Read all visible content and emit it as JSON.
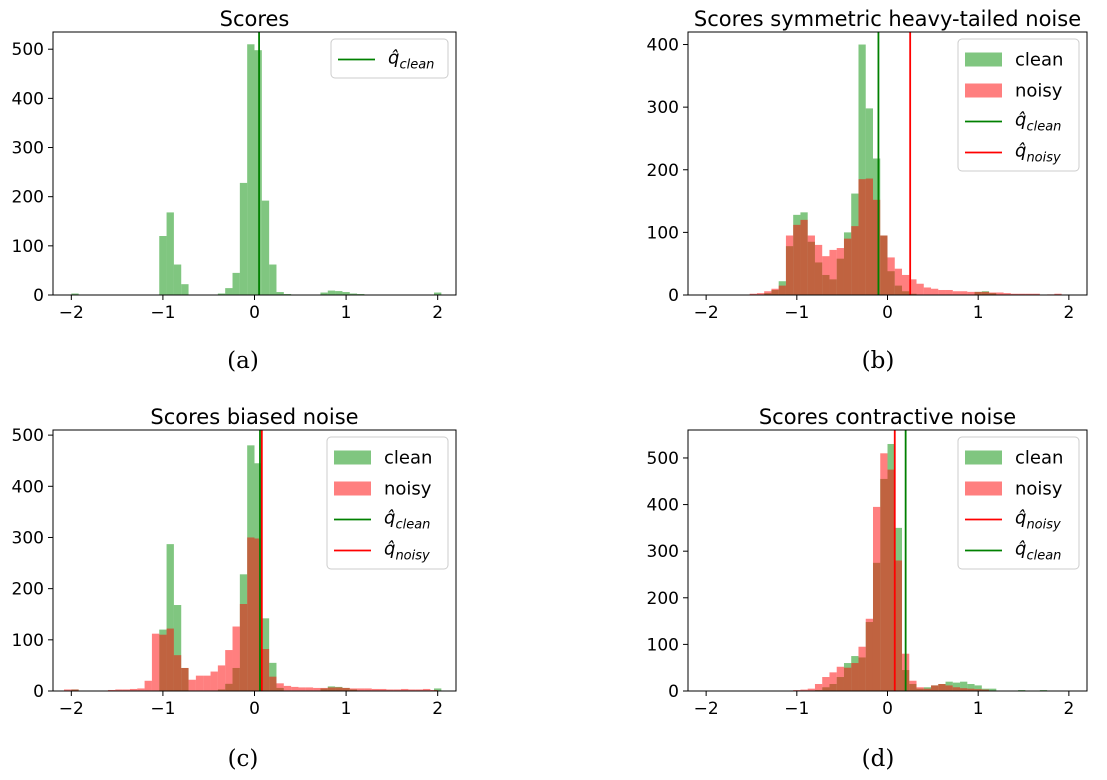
{
  "chart_data": [
    {
      "type": "histogram",
      "title": "Scores",
      "caption": "(a)",
      "xlim": [
        -2.2,
        2.2
      ],
      "ylim": [
        0,
        535
      ],
      "xticks": [
        -2,
        -1,
        0,
        1,
        2
      ],
      "yticks": [
        0,
        100,
        200,
        300,
        400,
        500
      ],
      "legend": "top-right",
      "bin_width": 0.08,
      "series": [
        {
          "name": "clean",
          "show_in_legend": false,
          "color": "#2ca02c",
          "opacity": 0.6,
          "bars": [
            [
              -2,
              3
            ],
            [
              -1.04,
              120
            ],
            [
              -0.96,
              168
            ],
            [
              -0.88,
              62
            ],
            [
              -0.8,
              22
            ],
            [
              -0.4,
              3
            ],
            [
              -0.32,
              14
            ],
            [
              -0.24,
              45
            ],
            [
              -0.16,
              228
            ],
            [
              -0.08,
              510
            ],
            [
              0,
              498
            ],
            [
              0.08,
              192
            ],
            [
              0.16,
              62
            ],
            [
              0.24,
              6
            ],
            [
              0.32,
              2
            ],
            [
              0.72,
              5
            ],
            [
              0.8,
              9
            ],
            [
              0.88,
              8
            ],
            [
              0.96,
              6
            ],
            [
              1.04,
              3
            ],
            [
              1.12,
              2
            ],
            [
              1.96,
              5
            ]
          ]
        }
      ],
      "vlines": [
        {
          "x": 0.05,
          "color": "#008000",
          "label": "q̂",
          "sub": "clean"
        }
      ]
    },
    {
      "type": "histogram",
      "title": "Scores symmetric heavy-tailed noise",
      "caption": "(b)",
      "xlim": [
        -2.2,
        2.2
      ],
      "ylim": [
        0,
        420
      ],
      "xticks": [
        -2,
        -1,
        0,
        1,
        2
      ],
      "yticks": [
        0,
        100,
        200,
        300,
        400
      ],
      "legend": "top-right",
      "bin_width": 0.08,
      "series": [
        {
          "name": "clean",
          "color": "#2ca02c",
          "opacity": 0.6,
          "bars": [
            [
              -1.36,
              3
            ],
            [
              -1.28,
              8
            ],
            [
              -1.2,
              22
            ],
            [
              -1.12,
              78
            ],
            [
              -1.04,
              128
            ],
            [
              -0.96,
              132
            ],
            [
              -0.88,
              85
            ],
            [
              -0.8,
              52
            ],
            [
              -0.72,
              32
            ],
            [
              -0.64,
              25
            ],
            [
              -0.56,
              58
            ],
            [
              -0.48,
              100
            ],
            [
              -0.4,
              162
            ],
            [
              -0.32,
              400
            ],
            [
              -0.24,
              298
            ],
            [
              -0.16,
              218
            ],
            [
              -0.08,
              95
            ],
            [
              0,
              38
            ],
            [
              0.08,
              15
            ],
            [
              0.16,
              6
            ],
            [
              0.24,
              2
            ],
            [
              0.96,
              5
            ],
            [
              1.04,
              6
            ],
            [
              1.12,
              3
            ]
          ]
        },
        {
          "name": "noisy",
          "color": "#ff0000",
          "opacity": 0.5,
          "bars": [
            [
              -1.52,
              2
            ],
            [
              -1.44,
              3
            ],
            [
              -1.36,
              6
            ],
            [
              -1.28,
              10
            ],
            [
              -1.2,
              15
            ],
            [
              -1.12,
              95
            ],
            [
              -1.04,
              112
            ],
            [
              -0.96,
              120
            ],
            [
              -0.88,
              95
            ],
            [
              -0.8,
              80
            ],
            [
              -0.72,
              62
            ],
            [
              -0.64,
              72
            ],
            [
              -0.56,
              75
            ],
            [
              -0.48,
              90
            ],
            [
              -0.4,
              110
            ],
            [
              -0.32,
              185
            ],
            [
              -0.24,
              186
            ],
            [
              -0.16,
              152
            ],
            [
              -0.08,
              95
            ],
            [
              0,
              60
            ],
            [
              0.08,
              42
            ],
            [
              0.16,
              32
            ],
            [
              0.24,
              25
            ],
            [
              0.32,
              18
            ],
            [
              0.4,
              12
            ],
            [
              0.48,
              10
            ],
            [
              0.56,
              8
            ],
            [
              0.64,
              8
            ],
            [
              0.72,
              6
            ],
            [
              0.8,
              6
            ],
            [
              0.88,
              5
            ],
            [
              0.96,
              5
            ],
            [
              1.04,
              5
            ],
            [
              1.12,
              4
            ],
            [
              1.2,
              4
            ],
            [
              1.28,
              3
            ],
            [
              1.36,
              2
            ],
            [
              1.44,
              2
            ],
            [
              1.52,
              2
            ],
            [
              1.6,
              2
            ],
            [
              1.76,
              1
            ],
            [
              1.84,
              2
            ]
          ]
        }
      ],
      "vlines": [
        {
          "x": -0.1,
          "color": "#008000",
          "label": "q̂",
          "sub": "clean"
        },
        {
          "x": 0.25,
          "color": "#ff0000",
          "label": "q̂",
          "sub": "noisy"
        }
      ]
    },
    {
      "type": "histogram",
      "title": "Scores biased noise",
      "caption": "(c)",
      "xlim": [
        -2.2,
        2.2
      ],
      "ylim": [
        0,
        510
      ],
      "xticks": [
        -2,
        -1,
        0,
        1,
        2
      ],
      "yticks": [
        0,
        100,
        200,
        300,
        400,
        500
      ],
      "legend": "top-right",
      "bin_width": 0.08,
      "series": [
        {
          "name": "clean",
          "color": "#2ca02c",
          "opacity": 0.6,
          "bars": [
            [
              -2,
              3
            ],
            [
              -1.04,
              120
            ],
            [
              -0.96,
              287
            ],
            [
              -0.88,
              168
            ],
            [
              -0.8,
              45
            ],
            [
              -0.4,
              3
            ],
            [
              -0.32,
              14
            ],
            [
              -0.24,
              45
            ],
            [
              -0.16,
              228
            ],
            [
              -0.08,
              480
            ],
            [
              0,
              445
            ],
            [
              0.08,
              142
            ],
            [
              0.16,
              55
            ],
            [
              0.24,
              6
            ],
            [
              0.72,
              5
            ],
            [
              0.8,
              9
            ],
            [
              0.88,
              8
            ],
            [
              0.96,
              6
            ],
            [
              1.04,
              3
            ],
            [
              1.96,
              5
            ]
          ]
        },
        {
          "name": "noisy",
          "color": "#ff0000",
          "opacity": 0.5,
          "bars": [
            [
              -2.08,
              3
            ],
            [
              -2,
              3
            ],
            [
              -1.6,
              2
            ],
            [
              -1.52,
              3
            ],
            [
              -1.44,
              3
            ],
            [
              -1.36,
              4
            ],
            [
              -1.28,
              5
            ],
            [
              -1.2,
              20
            ],
            [
              -1.12,
              112
            ],
            [
              -1.04,
              110
            ],
            [
              -0.96,
              122
            ],
            [
              -0.88,
              70
            ],
            [
              -0.8,
              45
            ],
            [
              -0.72,
              22
            ],
            [
              -0.64,
              30
            ],
            [
              -0.56,
              30
            ],
            [
              -0.48,
              38
            ],
            [
              -0.4,
              50
            ],
            [
              -0.32,
              80
            ],
            [
              -0.24,
              126
            ],
            [
              -0.16,
              170
            ],
            [
              -0.08,
              300
            ],
            [
              0,
              298
            ],
            [
              0.08,
              82
            ],
            [
              0.16,
              28
            ],
            [
              0.24,
              15
            ],
            [
              0.32,
              10
            ],
            [
              0.4,
              8
            ],
            [
              0.48,
              7
            ],
            [
              0.56,
              7
            ],
            [
              0.64,
              6
            ],
            [
              0.72,
              6
            ],
            [
              0.8,
              7
            ],
            [
              0.88,
              7
            ],
            [
              0.96,
              6
            ],
            [
              1.04,
              5
            ],
            [
              1.12,
              5
            ],
            [
              1.2,
              5
            ],
            [
              1.28,
              4
            ],
            [
              1.36,
              4
            ],
            [
              1.44,
              3
            ],
            [
              1.52,
              3
            ],
            [
              1.6,
              4
            ],
            [
              1.68,
              3
            ],
            [
              1.76,
              3
            ],
            [
              1.84,
              4
            ],
            [
              1.92,
              2
            ]
          ]
        }
      ],
      "vlines": [
        {
          "x": 0.06,
          "color": "#008000",
          "label": "q̂",
          "sub": "clean"
        },
        {
          "x": 0.08,
          "color": "#ff0000",
          "label": "q̂",
          "sub": "noisy"
        }
      ]
    },
    {
      "type": "histogram",
      "title": "Scores contractive noise",
      "caption": "(d)",
      "xlim": [
        -2.2,
        2.2
      ],
      "ylim": [
        0,
        560
      ],
      "xticks": [
        -2,
        -1,
        0,
        1,
        2
      ],
      "yticks": [
        0,
        100,
        200,
        300,
        400,
        500
      ],
      "legend": "top-right",
      "bin_width": 0.08,
      "series": [
        {
          "name": "clean",
          "color": "#2ca02c",
          "opacity": 0.6,
          "bars": [
            [
              -0.8,
              2
            ],
            [
              -0.72,
              8
            ],
            [
              -0.64,
              15
            ],
            [
              -0.56,
              30
            ],
            [
              -0.48,
              60
            ],
            [
              -0.4,
              75
            ],
            [
              -0.32,
              72
            ],
            [
              -0.24,
              148
            ],
            [
              -0.16,
              275
            ],
            [
              -0.08,
              455
            ],
            [
              0,
              530
            ],
            [
              0.08,
              350
            ],
            [
              0.16,
              45
            ],
            [
              0.24,
              15
            ],
            [
              0.32,
              5
            ],
            [
              0.4,
              8
            ],
            [
              0.48,
              12
            ],
            [
              0.56,
              15
            ],
            [
              0.64,
              20
            ],
            [
              0.72,
              18
            ],
            [
              0.8,
              20
            ],
            [
              0.88,
              15
            ],
            [
              0.96,
              12
            ],
            [
              1.04,
              5
            ],
            [
              1.12,
              5
            ],
            [
              1.44,
              2
            ],
            [
              1.68,
              2
            ]
          ]
        },
        {
          "name": "noisy",
          "color": "#ff0000",
          "opacity": 0.5,
          "bars": [
            [
              -1.04,
              2
            ],
            [
              -0.96,
              3
            ],
            [
              -0.88,
              5
            ],
            [
              -0.8,
              15
            ],
            [
              -0.72,
              30
            ],
            [
              -0.64,
              40
            ],
            [
              -0.56,
              52
            ],
            [
              -0.48,
              50
            ],
            [
              -0.4,
              60
            ],
            [
              -0.32,
              95
            ],
            [
              -0.24,
              155
            ],
            [
              -0.16,
              395
            ],
            [
              -0.08,
              510
            ],
            [
              0,
              475
            ],
            [
              0.08,
              280
            ],
            [
              0.16,
              80
            ],
            [
              0.24,
              22
            ],
            [
              0.32,
              8
            ],
            [
              0.4,
              5
            ],
            [
              0.48,
              12
            ],
            [
              0.56,
              15
            ],
            [
              0.64,
              12
            ],
            [
              0.72,
              8
            ],
            [
              0.8,
              6
            ],
            [
              0.88,
              5
            ],
            [
              0.96,
              4
            ],
            [
              1.04,
              3
            ]
          ]
        }
      ],
      "vlines": [
        {
          "x": 0.08,
          "color": "#ff0000",
          "label": "q̂",
          "sub": "noisy"
        },
        {
          "x": 0.2,
          "color": "#008000",
          "label": "q̂",
          "sub": "clean"
        }
      ]
    }
  ]
}
